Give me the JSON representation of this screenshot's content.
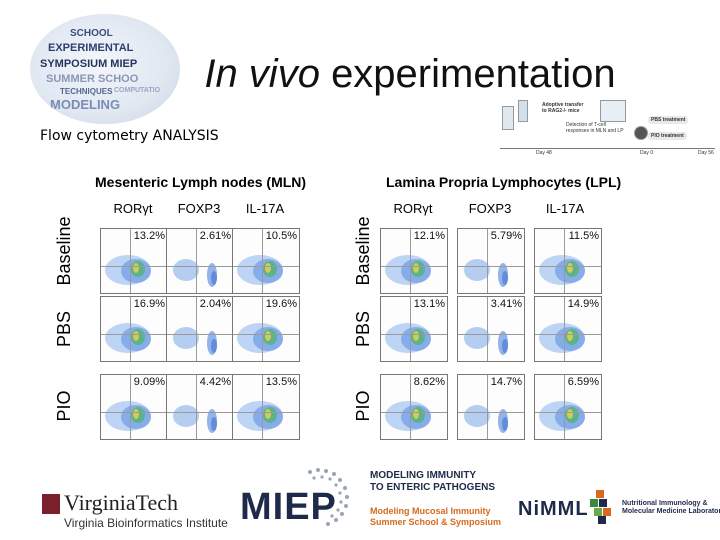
{
  "slide": {
    "title_italic": "In vivo",
    "title_rest": "experimentation",
    "subtitle": "Flow cytometry ANALYSIS"
  },
  "logo_words": [
    "SCHOOL",
    "EXPERIMENTAL",
    "SYMPOSIUM MIEP",
    "SUMMER SCHOO",
    "TECHNIQUES",
    "MODELING",
    "COMPUTATIO"
  ],
  "schematic": {
    "step1": "Adoptive transfer\nto RAG2-/- mice",
    "step2": "Detection of T-cell\nresponses in MLN and LP",
    "treat1": "PBS treatment",
    "treat2": "PIO treatment",
    "day1": "Day 48",
    "day2": "Day 0",
    "day3": "Day 56"
  },
  "panels": [
    {
      "title": "Mesenteric Lymph nodes (MLN)",
      "columns": [
        "RORγt",
        "FOXP3",
        "IL-17A"
      ],
      "rows": [
        {
          "label": "Baseline",
          "values": [
            "13.2%",
            "2.61%",
            "10.5%"
          ]
        },
        {
          "label": "PBS",
          "values": [
            "16.9%",
            "2.04%",
            "19.6%"
          ]
        },
        {
          "label": "PIO",
          "values": [
            "9.09%",
            "4.42%",
            "13.5%"
          ]
        }
      ]
    },
    {
      "title": "Lamina Propria Lymphocytes (LPL)",
      "columns": [
        "RORγt",
        "FOXP3",
        "IL-17A"
      ],
      "rows": [
        {
          "label": "Baseline",
          "values": [
            "12.1%",
            "5.79%",
            "11.5%"
          ]
        },
        {
          "label": "PBS",
          "values": [
            "13.1%",
            "3.41%",
            "14.9%"
          ]
        },
        {
          "label": "PIO",
          "values": [
            "8.62%",
            "14.7%",
            "6.59%"
          ]
        }
      ]
    }
  ],
  "footer": {
    "vt_name": "VirginiaTech",
    "vt_sub": "Virginia Bioinformatics Institute",
    "miep": "MIEP",
    "mi_line1": "MODELING IMMUNITY",
    "mi_line2": "TO ENTERIC PATHOGENS",
    "mi_line3": "Modeling Mucosal Immunity",
    "mi_line4": "Summer School & Symposium",
    "nimml": "NiMML",
    "nimml_line1": "Nutritional Immunology &",
    "nimml_line2": "Molecular Medicine Laboratory"
  },
  "colors": {
    "vt_maroon": "#7a1f2b",
    "vt_orange": "#d66a1e",
    "navy": "#1e2a4a"
  }
}
